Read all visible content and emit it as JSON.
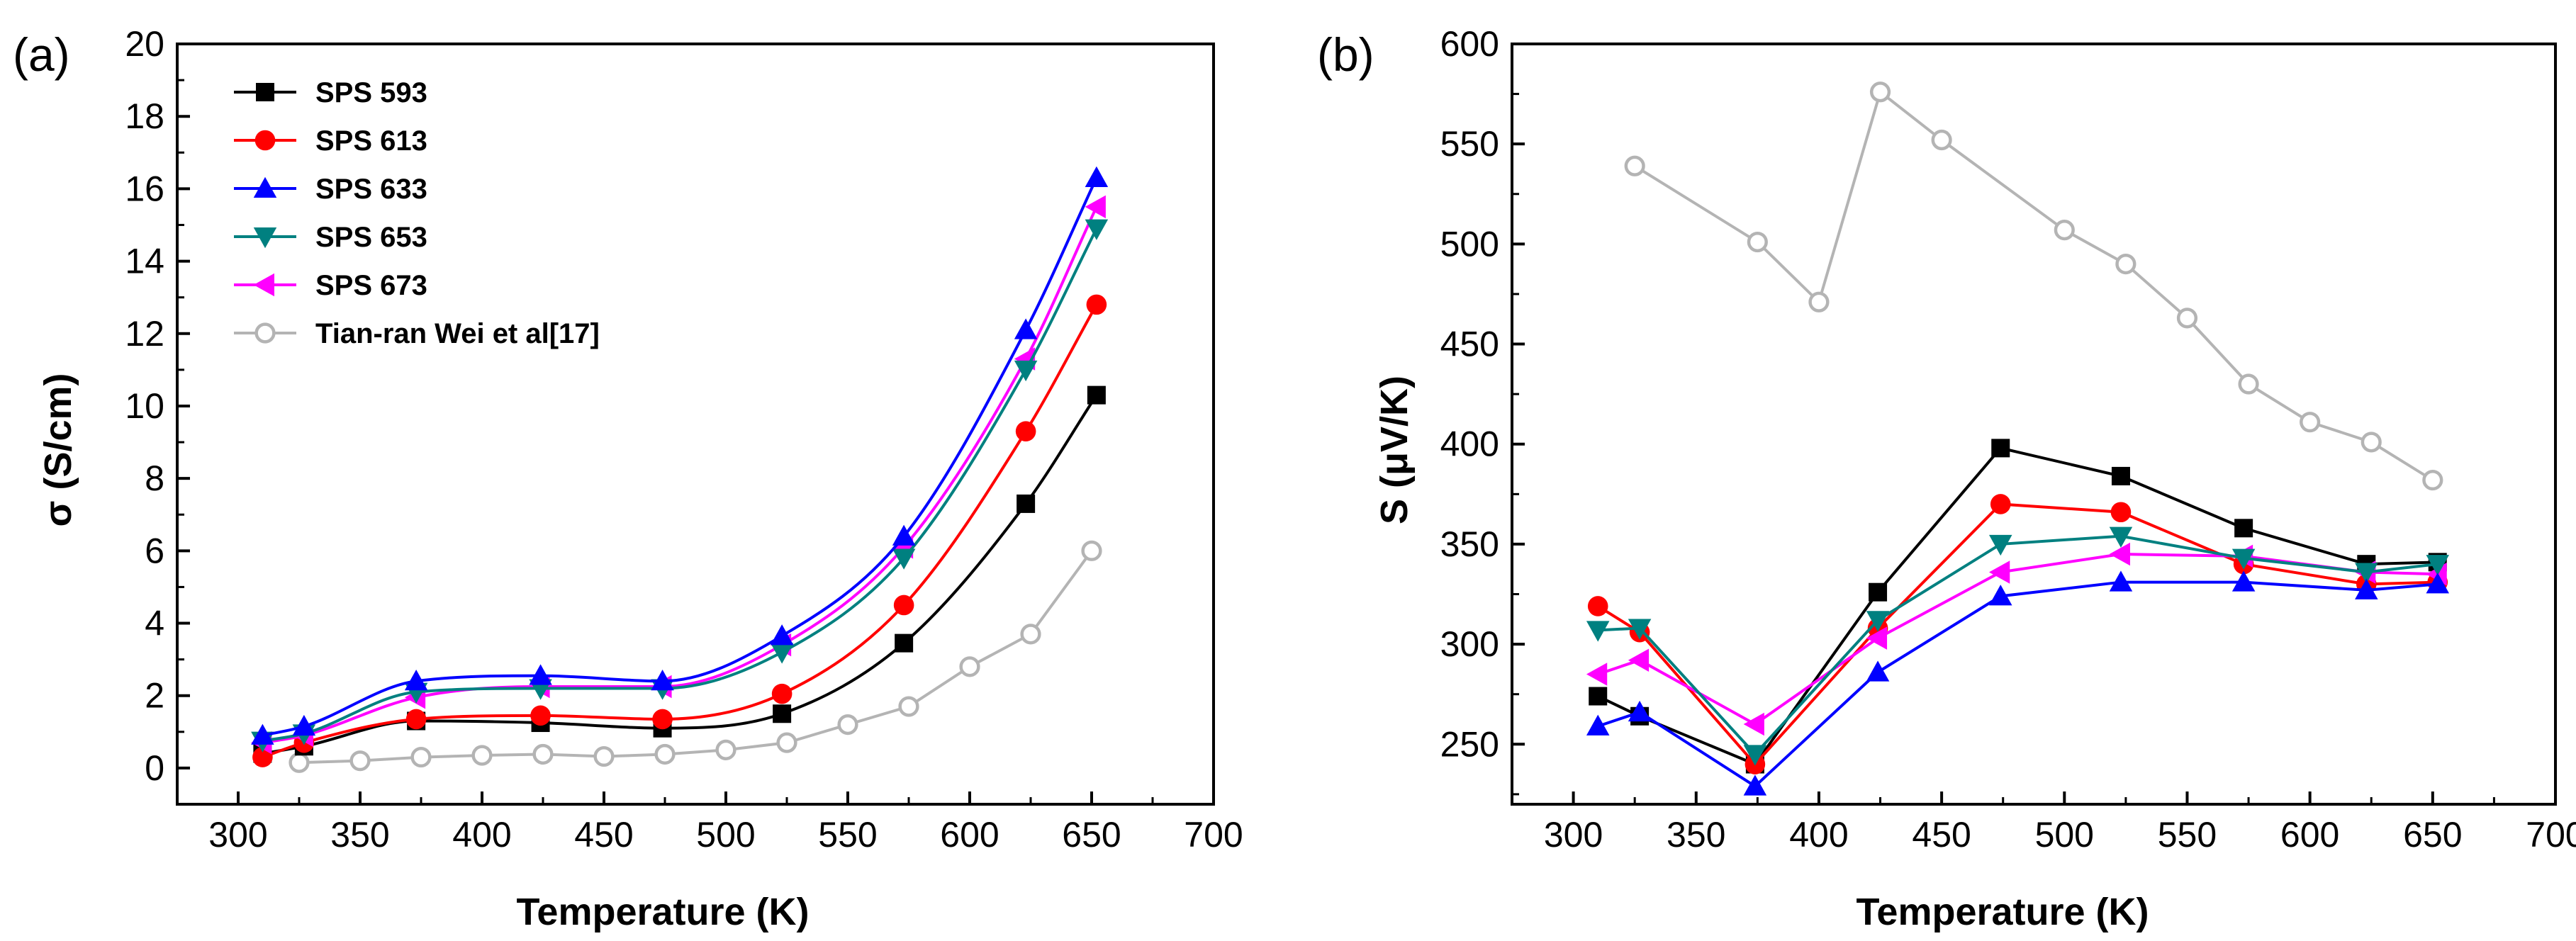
{
  "chart_data": [
    {
      "type": "line",
      "panel_label": "(a)",
      "xlabel": "Temperature (K)",
      "ylabel": "σ (S/cm)",
      "xlim": [
        275,
        700
      ],
      "ylim": [
        -1,
        20
      ],
      "x_ticks": [
        300,
        350,
        400,
        450,
        500,
        550,
        600,
        650,
        700
      ],
      "y_ticks": [
        0,
        2,
        4,
        6,
        8,
        10,
        12,
        14,
        16,
        18,
        20
      ],
      "x_tick_labels": [
        "300",
        "350",
        "400",
        "450",
        "500",
        "550",
        "600",
        "650",
        "700"
      ],
      "y_tick_labels": [
        "0",
        "2",
        "4",
        "6",
        "8",
        "10",
        "12",
        "14",
        "16",
        "18",
        "20"
      ],
      "legend_position": "top-left",
      "series": [
        {
          "name": "SPS 593",
          "color": "#000000",
          "marker": "square",
          "curve": "smooth",
          "x": [
            310,
            327,
            373,
            424,
            474,
            523,
            573,
            623,
            652
          ],
          "y": [
            0.4,
            0.6,
            1.3,
            1.25,
            1.1,
            1.5,
            3.45,
            7.3,
            10.3
          ]
        },
        {
          "name": "SPS 613",
          "color": "#ff0000",
          "marker": "circle",
          "curve": "smooth",
          "x": [
            310,
            327,
            373,
            424,
            474,
            523,
            573,
            623,
            652
          ],
          "y": [
            0.3,
            0.7,
            1.35,
            1.45,
            1.35,
            2.05,
            4.5,
            9.3,
            12.8
          ]
        },
        {
          "name": "SPS 633",
          "color": "#0000ff",
          "marker": "triangle-up",
          "curve": "smooth",
          "x": [
            310,
            327,
            373,
            424,
            474,
            523,
            573,
            623,
            652
          ],
          "y": [
            0.9,
            1.15,
            2.4,
            2.55,
            2.4,
            3.65,
            6.4,
            12.1,
            16.3
          ]
        },
        {
          "name": "SPS 653",
          "color": "#008080",
          "marker": "triangle-down",
          "curve": "smooth",
          "x": [
            310,
            327,
            373,
            424,
            474,
            523,
            573,
            623,
            652
          ],
          "y": [
            0.75,
            0.95,
            2.1,
            2.2,
            2.2,
            3.2,
            5.8,
            11.0,
            14.9
          ]
        },
        {
          "name": "SPS 673",
          "color": "#ff00ff",
          "marker": "triangle-left",
          "curve": "smooth",
          "x": [
            310,
            327,
            373,
            424,
            474,
            523,
            573,
            623,
            652
          ],
          "y": [
            0.7,
            0.9,
            1.95,
            2.25,
            2.25,
            3.4,
            6.1,
            11.3,
            15.5
          ]
        },
        {
          "name": "Tian-ran Wei et al[17]",
          "color": "#b4b4b4",
          "marker": "open-circle",
          "curve": "linear",
          "x": [
            325,
            350,
            375,
            400,
            425,
            450,
            475,
            500,
            525,
            550,
            575,
            600,
            625,
            650
          ],
          "y": [
            0.15,
            0.2,
            0.3,
            0.35,
            0.38,
            0.32,
            0.38,
            0.5,
            0.7,
            1.2,
            1.7,
            2.8,
            3.7,
            6.0
          ]
        }
      ]
    },
    {
      "type": "line",
      "panel_label": "(b)",
      "xlabel": "Temperature (K)",
      "ylabel": "S (μV/K)",
      "xlim": [
        275,
        700
      ],
      "ylim": [
        220,
        600
      ],
      "x_ticks": [
        300,
        350,
        400,
        450,
        500,
        550,
        600,
        650,
        700
      ],
      "y_ticks": [
        250,
        300,
        350,
        400,
        450,
        500,
        550,
        600
      ],
      "x_tick_labels": [
        "300",
        "350",
        "400",
        "450",
        "500",
        "550",
        "600",
        "650",
        "700"
      ],
      "y_tick_labels": [
        "250",
        "300",
        "350",
        "400",
        "450",
        "500",
        "550",
        "600"
      ],
      "series": [
        {
          "name": "SPS 593",
          "color": "#000000",
          "marker": "square",
          "curve": "linear",
          "x": [
            310,
            327,
            374,
            424,
            474,
            523,
            573,
            623,
            652
          ],
          "y": [
            274,
            264,
            240,
            326,
            398,
            384,
            358,
            340,
            341
          ]
        },
        {
          "name": "SPS 613",
          "color": "#ff0000",
          "marker": "circle",
          "curve": "linear",
          "x": [
            310,
            327,
            374,
            424,
            474,
            523,
            573,
            623,
            652
          ],
          "y": [
            319,
            306,
            240,
            308,
            370,
            366,
            340,
            330,
            331
          ]
        },
        {
          "name": "SPS 633",
          "color": "#0000ff",
          "marker": "triangle-up",
          "curve": "linear",
          "x": [
            310,
            327,
            374,
            424,
            474,
            523,
            573,
            623,
            652
          ],
          "y": [
            259,
            266,
            229,
            286,
            324,
            331,
            331,
            327,
            330
          ]
        },
        {
          "name": "SPS 653",
          "color": "#008080",
          "marker": "triangle-down",
          "curve": "linear",
          "x": [
            310,
            327,
            374,
            424,
            474,
            523,
            573,
            623,
            652
          ],
          "y": [
            307,
            308,
            245,
            312,
            350,
            354,
            343,
            336,
            340
          ]
        },
        {
          "name": "SPS 673",
          "color": "#ff00ff",
          "marker": "triangle-left",
          "curve": "linear",
          "x": [
            310,
            327,
            374,
            424,
            474,
            523,
            573,
            623,
            652
          ],
          "y": [
            285,
            292,
            260,
            303,
            336,
            345,
            344,
            336,
            335
          ]
        },
        {
          "name": "Tian-ran Wei et al[17]",
          "color": "#b4b4b4",
          "marker": "open-circle",
          "curve": "linear",
          "x": [
            325,
            375,
            400,
            425,
            450,
            500,
            525,
            550,
            575,
            600,
            625,
            650
          ],
          "y": [
            539,
            501,
            471,
            576,
            552,
            507,
            490,
            463,
            430,
            411,
            401,
            382
          ]
        }
      ]
    }
  ]
}
